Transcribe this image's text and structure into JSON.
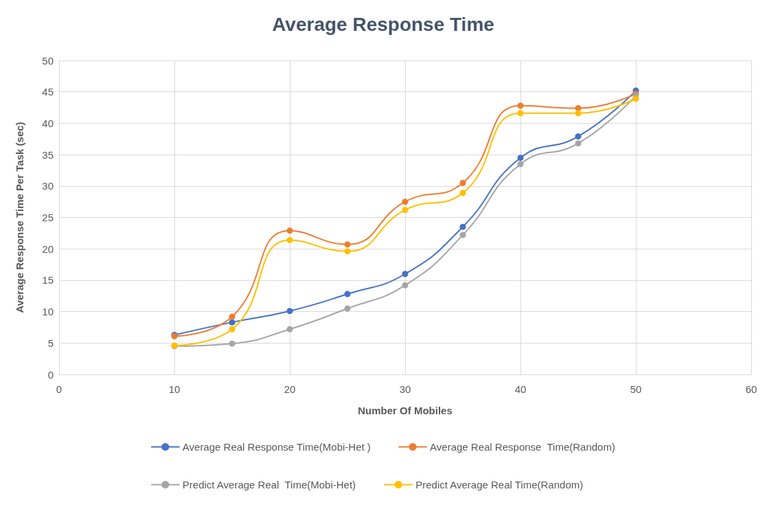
{
  "chart_data": {
    "type": "line",
    "title": "Average Response Time",
    "xlabel": "Number Of Mobiles",
    "ylabel": "Average Response Time Per Task (sec)",
    "x": [
      10,
      15,
      20,
      25,
      30,
      35,
      40,
      45,
      50
    ],
    "series": [
      {
        "name": "Average Real Response Time(Mobi-Het )",
        "color": "#4472c4",
        "values": [
          6.3,
          8.3,
          10.1,
          12.8,
          16.0,
          23.5,
          34.5,
          37.9,
          45.2
        ]
      },
      {
        "name": "Average Real Response  Time(Random)",
        "color": "#ed7d31",
        "values": [
          6.1,
          9.2,
          22.9,
          20.7,
          27.5,
          30.5,
          42.8,
          42.4,
          44.7
        ]
      },
      {
        "name": "Predict Average Real  Time(Mobi-Het)",
        "color": "#a5a5a5",
        "values": [
          4.5,
          4.9,
          7.2,
          10.5,
          14.2,
          22.2,
          33.5,
          36.8,
          44.4
        ]
      },
      {
        "name": "Predict Average Real Time(Random)",
        "color": "#ffc000",
        "values": [
          4.6,
          7.2,
          21.4,
          19.6,
          26.2,
          28.9,
          41.6,
          41.6,
          43.9
        ]
      }
    ],
    "xlim": [
      0,
      60
    ],
    "xticks": [
      0,
      10,
      20,
      30,
      40,
      50,
      60
    ],
    "ylim": [
      0,
      50
    ],
    "yticks": [
      0,
      5,
      10,
      15,
      20,
      25,
      30,
      35,
      40,
      45,
      50
    ],
    "grid": true,
    "legend": "bottom",
    "marker": "circle",
    "line_style": "solid"
  }
}
